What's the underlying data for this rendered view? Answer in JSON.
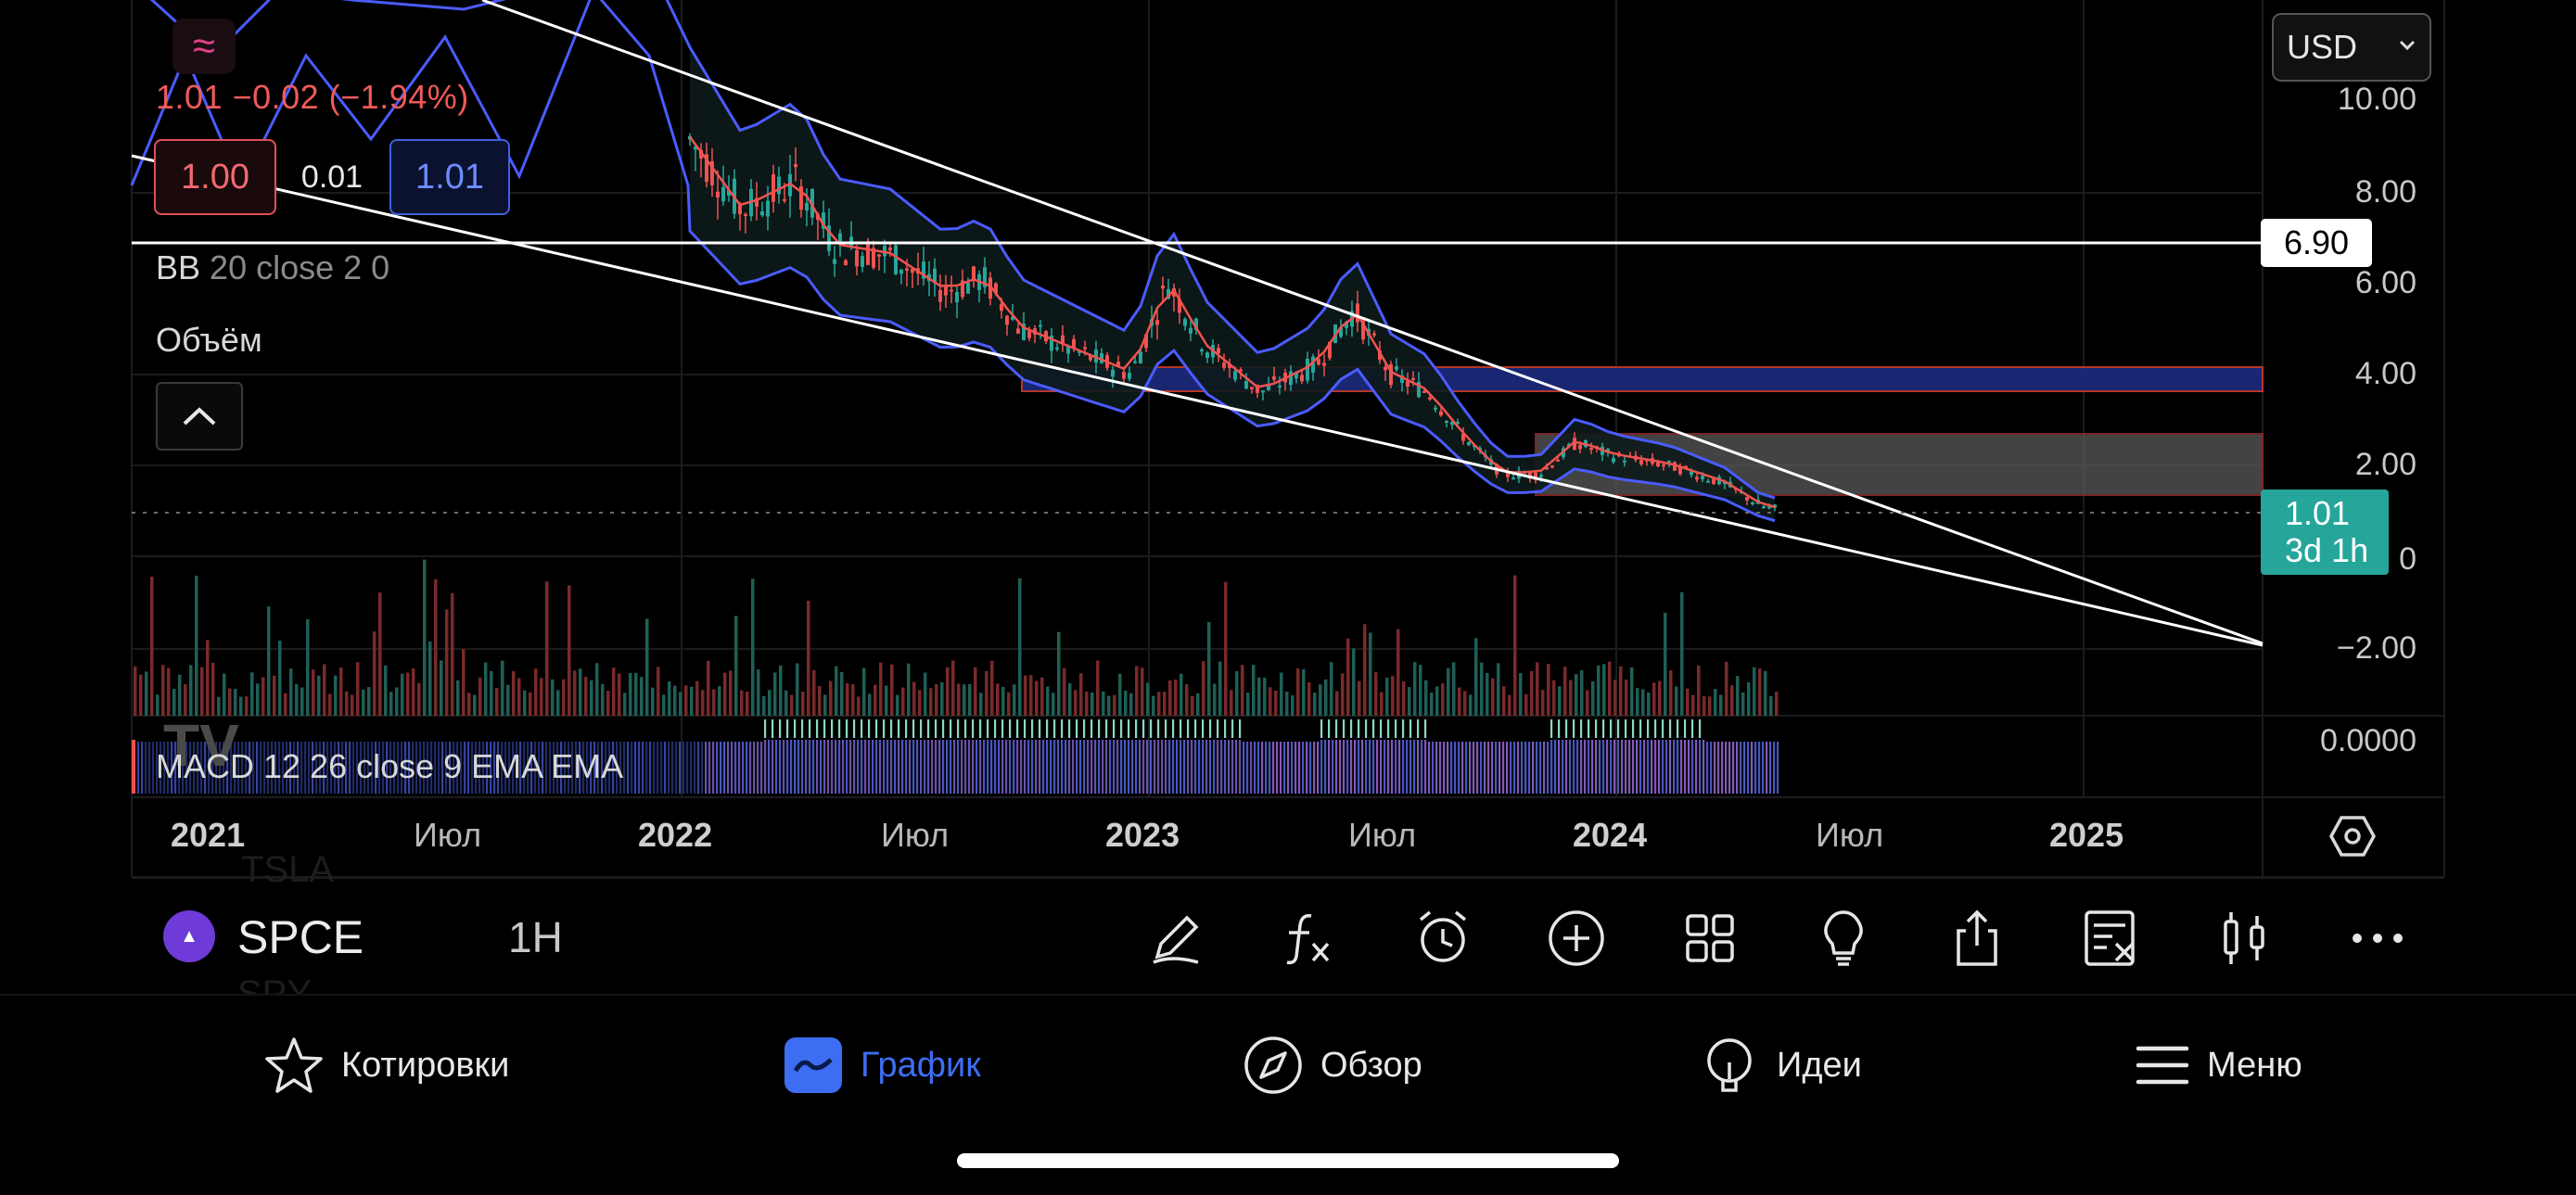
{
  "legend": {
    "price_change": "1.01  −0.02 (−1.94%)",
    "ohlc_low": "1.00",
    "spread": "0.01",
    "ohlc_high": "1.01",
    "bb_name": "BB",
    "bb_params": "20 close 2 0",
    "volume_label": "Объём",
    "macd_label": "MACD 12 26 close 9 EMA EMA"
  },
  "price_axis": {
    "ticks": [
      "10.00",
      "8.00",
      "6.00",
      "4.00",
      "2.00",
      "0",
      "−2.00"
    ],
    "macd_tick": "0.0000",
    "horizontal_line_value": "6.90",
    "last_price": "1.01",
    "countdown": "3d 1h"
  },
  "currency": "USD",
  "time_axis": {
    "labels": [
      {
        "text": "2021",
        "year": true
      },
      {
        "text": "Июл",
        "year": false
      },
      {
        "text": "2022",
        "year": true
      },
      {
        "text": "Июл",
        "year": false
      },
      {
        "text": "2023",
        "year": true
      },
      {
        "text": "Июл",
        "year": false
      },
      {
        "text": "2024",
        "year": true
      },
      {
        "text": "Июл",
        "year": false
      },
      {
        "text": "2025",
        "year": true
      }
    ]
  },
  "toolbar": {
    "symbol": "SPCE",
    "logo_text": "▲",
    "interval": "1H",
    "ghost_above": "TSLA",
    "ghost_below": "SPY",
    "icons": [
      "pencil-icon",
      "function-icon",
      "alarm-icon",
      "add-icon",
      "grid-icon",
      "lightbulb-icon",
      "share-icon",
      "object-tree-icon",
      "candles-icon",
      "more-icon"
    ]
  },
  "nav": {
    "items": [
      {
        "label": "Котировки",
        "icon": "star-icon",
        "active": false
      },
      {
        "label": "График",
        "icon": "chart-icon",
        "active": true
      },
      {
        "label": "Обзор",
        "icon": "compass-icon",
        "active": false
      },
      {
        "label": "Идеи",
        "icon": "bulb-icon",
        "active": false
      },
      {
        "label": "Меню",
        "icon": "menu-icon",
        "active": false
      }
    ]
  },
  "colors": {
    "up": "#26a69a",
    "down": "#ef5350",
    "bb_band": "#4a5cff",
    "ema": "#ef5350",
    "accent": "#3d6df2"
  }
}
